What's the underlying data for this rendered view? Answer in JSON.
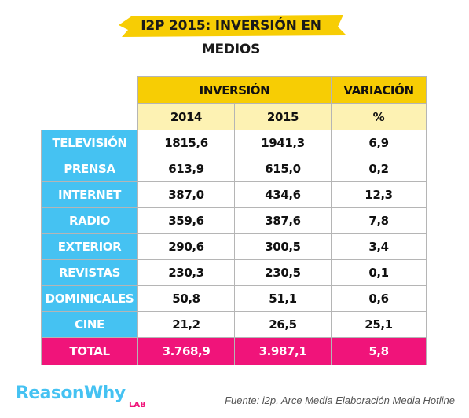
{
  "title": "I2P 2015: INVERSIÓN EN MEDIOS",
  "colors": {
    "header_yellow": "#f7cd04",
    "header_light": "#fdf2b3",
    "label_blue": "#45c2f2",
    "total_pink": "#f0147a",
    "brand_blue": "#45c2f2"
  },
  "table": {
    "header_inversion": "INVERSIÓN",
    "header_variacion": "VARIACIÓN",
    "sub_2014": "2014",
    "sub_2015": "2015",
    "sub_pct": "%",
    "rows": [
      {
        "label": "TELEVISIÓN",
        "v2014": "1815,6",
        "v2015": "1941,3",
        "var": "6,9"
      },
      {
        "label": "PRENSA",
        "v2014": "613,9",
        "v2015": "615,0",
        "var": "0,2"
      },
      {
        "label": "INTERNET",
        "v2014": "387,0",
        "v2015": "434,6",
        "var": "12,3"
      },
      {
        "label": "RADIO",
        "v2014": "359,6",
        "v2015": "387,6",
        "var": "7,8"
      },
      {
        "label": "EXTERIOR",
        "v2014": "290,6",
        "v2015": "300,5",
        "var": "3,4"
      },
      {
        "label": "REVISTAS",
        "v2014": "230,3",
        "v2015": "230,5",
        "var": "0,1"
      },
      {
        "label": "DOMINICALES",
        "v2014": "50,8",
        "v2015": "51,1",
        "var": "0,6"
      },
      {
        "label": "CINE",
        "v2014": "21,2",
        "v2015": "26,5",
        "var": "25,1"
      }
    ],
    "total": {
      "label": "TOTAL",
      "v2014": "3.768,9",
      "v2015": "3.987,1",
      "var": "5,8"
    }
  },
  "brand": {
    "name": "ReasonWhy",
    "sub": "LAB"
  },
  "source": "Fuente:  i2p, Arce Media Elaboración Media Hotline"
}
